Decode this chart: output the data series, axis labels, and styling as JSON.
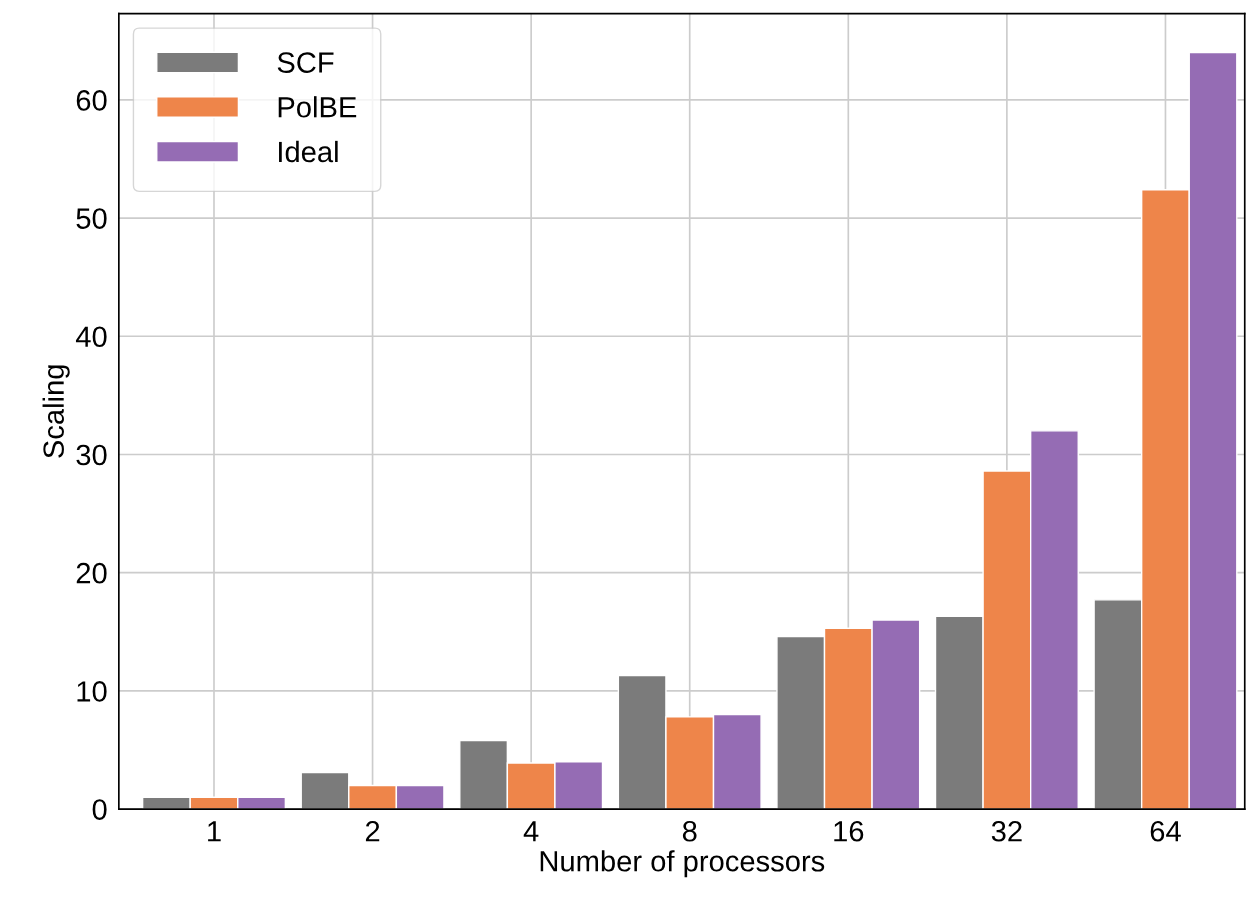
{
  "chart_data": {
    "type": "bar",
    "xlabel": "Number of processors",
    "ylabel": "Scaling",
    "categories": [
      "1",
      "2",
      "4",
      "8",
      "16",
      "32",
      "64"
    ],
    "series": [
      {
        "name": "SCF",
        "color": "#7b7b7b",
        "values": [
          1.0,
          3.1,
          5.8,
          11.3,
          14.6,
          16.3,
          17.7
        ]
      },
      {
        "name": "PolBE",
        "color": "#ee854a",
        "values": [
          1.0,
          2.0,
          3.9,
          7.8,
          15.3,
          28.6,
          52.4
        ]
      },
      {
        "name": "Ideal",
        "color": "#956cb4",
        "values": [
          1,
          2,
          4,
          8,
          16,
          32,
          64
        ]
      }
    ],
    "ylim": [
      0,
      67.3
    ],
    "yticks": [
      0,
      10,
      20,
      30,
      40,
      50,
      60
    ],
    "grid": true,
    "legend": "top left"
  }
}
